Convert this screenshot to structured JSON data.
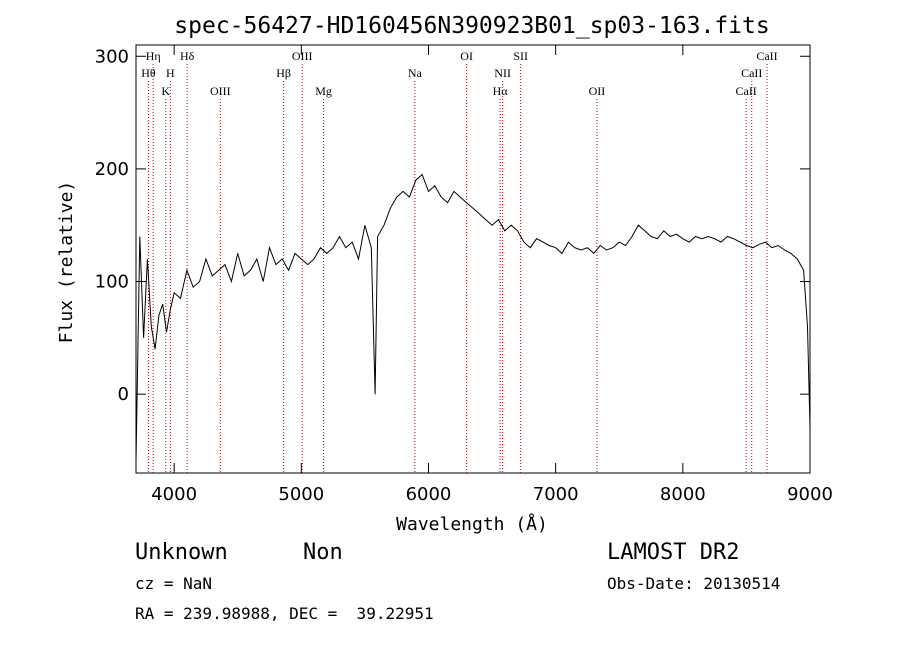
{
  "chart_data": {
    "type": "line",
    "title": "spec-56427-HD160456N390923B01_sp03-163.fits",
    "xlabel": "Wavelength (Å)",
    "ylabel": "Flux (relative)",
    "xlim": [
      3700,
      9000
    ],
    "ylim": [
      -70,
      310
    ],
    "x_ticks": [
      4000,
      5000,
      6000,
      7000,
      8000,
      9000
    ],
    "y_ticks": [
      0,
      100,
      200,
      300
    ],
    "grid": false,
    "legend": "none",
    "series": [
      {
        "color": "#000000",
        "x": [
          3700,
          3730,
          3760,
          3790,
          3820,
          3850,
          3880,
          3910,
          3940,
          3970,
          4000,
          4050,
          4100,
          4150,
          4200,
          4250,
          4300,
          4350,
          4400,
          4450,
          4500,
          4550,
          4600,
          4650,
          4700,
          4750,
          4800,
          4850,
          4900,
          4950,
          5000,
          5050,
          5100,
          5150,
          5200,
          5250,
          5300,
          5350,
          5400,
          5450,
          5500,
          5550,
          5580,
          5600,
          5650,
          5700,
          5750,
          5800,
          5850,
          5900,
          5950,
          6000,
          6050,
          6100,
          6150,
          6200,
          6250,
          6300,
          6350,
          6400,
          6450,
          6500,
          6550,
          6600,
          6650,
          6700,
          6750,
          6800,
          6850,
          6900,
          6950,
          7000,
          7050,
          7100,
          7150,
          7200,
          7250,
          7300,
          7350,
          7400,
          7450,
          7500,
          7550,
          7600,
          7650,
          7700,
          7750,
          7800,
          7850,
          7900,
          7950,
          8000,
          8050,
          8100,
          8150,
          8200,
          8250,
          8300,
          8350,
          8400,
          8450,
          8500,
          8550,
          8600,
          8650,
          8700,
          8750,
          8800,
          8850,
          8900,
          8950,
          8980,
          9000
        ],
        "y": [
          -60,
          140,
          50,
          120,
          60,
          40,
          70,
          80,
          55,
          75,
          90,
          85,
          110,
          95,
          100,
          120,
          105,
          110,
          115,
          100,
          125,
          105,
          110,
          120,
          100,
          130,
          115,
          120,
          110,
          125,
          120,
          115,
          120,
          130,
          125,
          130,
          140,
          130,
          135,
          120,
          150,
          130,
          0,
          140,
          150,
          165,
          175,
          180,
          175,
          190,
          195,
          180,
          185,
          175,
          170,
          180,
          175,
          170,
          165,
          160,
          155,
          150,
          155,
          145,
          150,
          145,
          135,
          130,
          138,
          135,
          132,
          130,
          125,
          135,
          130,
          128,
          130,
          125,
          132,
          128,
          130,
          135,
          132,
          140,
          150,
          145,
          140,
          138,
          145,
          140,
          142,
          138,
          135,
          140,
          138,
          140,
          138,
          135,
          140,
          138,
          135,
          132,
          130,
          133,
          135,
          130,
          132,
          128,
          125,
          120,
          110,
          60,
          -30
        ]
      }
    ],
    "annotations": [
      {
        "label": "Hη",
        "x": 3835,
        "row": 0
      },
      {
        "label": "Hθ",
        "x": 3798,
        "row": 1
      },
      {
        "label": "H",
        "x": 3970,
        "row": 1
      },
      {
        "label": "K",
        "x": 3934,
        "row": 2
      },
      {
        "label": "Hδ",
        "x": 4102,
        "row": 0
      },
      {
        "label": "OIII",
        "x": 4363,
        "row": 2
      },
      {
        "label": "OIII",
        "x": 5007,
        "row": 0
      },
      {
        "label": "Hβ",
        "x": 4861,
        "row": 1
      },
      {
        "label": "Mg",
        "x": 5175,
        "row": 2
      },
      {
        "label": "Na",
        "x": 5893,
        "row": 1
      },
      {
        "label": "OI",
        "x": 6300,
        "row": 0
      },
      {
        "label": "NII",
        "x": 6583,
        "row": 1
      },
      {
        "label": "Hα",
        "x": 6563,
        "row": 2
      },
      {
        "label": "OII",
        "x": 7325,
        "row": 2
      },
      {
        "label": "SII",
        "x": 6725,
        "row": 0
      },
      {
        "label": "CaII",
        "x": 8662,
        "row": 0
      },
      {
        "label": "CaII",
        "x": 8542,
        "row": 1
      },
      {
        "label": "CaII",
        "x": 8498,
        "row": 2
      }
    ]
  },
  "footer": {
    "object_class": "Unknown",
    "subclass": "Non",
    "survey": "LAMOST DR2",
    "cz": "cz = NaN",
    "obs_date": "Obs-Date: 20130514",
    "coords": "RA = 239.98988, DEC =  39.22951"
  }
}
